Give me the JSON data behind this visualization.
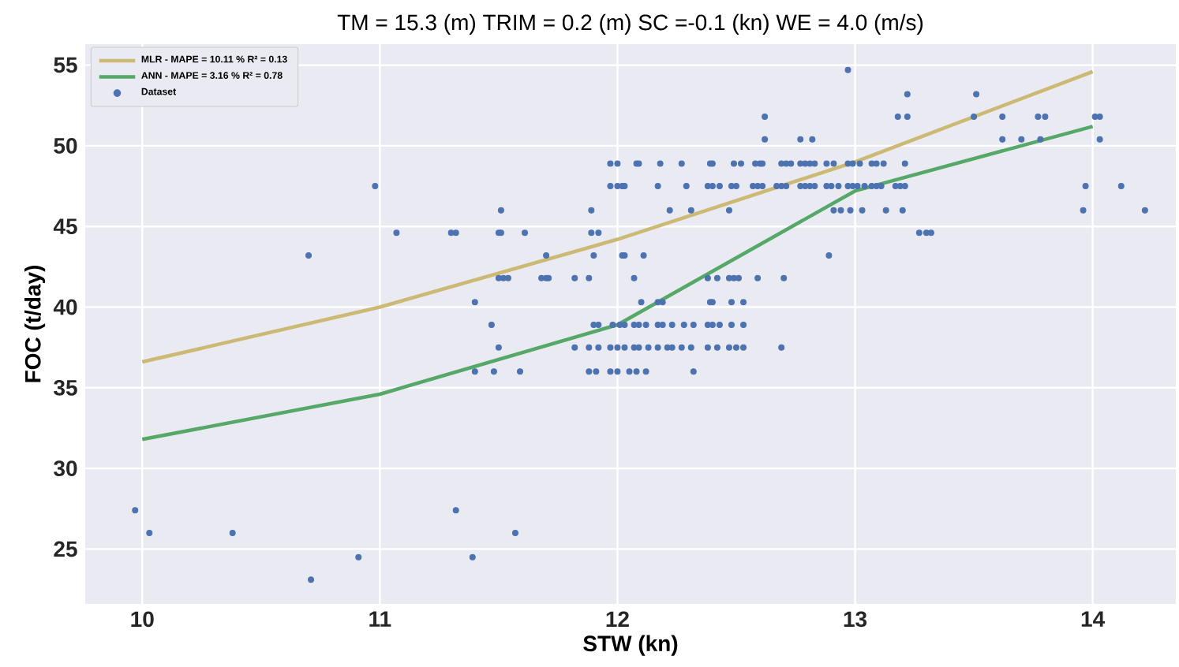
{
  "chart_data": {
    "type": "scatter",
    "title": "TM = 15.3 (m) TRIM = 0.2 (m) SC =-0.1 (kn) WE = 4.0 (m/s)",
    "xlabel": "STW (kn)",
    "ylabel": "FOC (t/day)",
    "xlim": [
      9.76,
      14.35
    ],
    "ylim": [
      21.6,
      56.3
    ],
    "xticks": [
      10,
      11,
      12,
      13,
      14
    ],
    "yticks": [
      25,
      30,
      35,
      40,
      45,
      50,
      55
    ],
    "grid": true,
    "legend": "top left",
    "series": [
      {
        "name": "MLR - MAPE = 10.11 %  R² =  0.13",
        "type": "line",
        "marker": "none",
        "line_style": "solid",
        "color": "#ccb974",
        "x": [
          10,
          11,
          12,
          13,
          14
        ],
        "values": [
          36.6,
          40.0,
          44.2,
          49.0,
          54.6
        ]
      },
      {
        "name": "ANN - MAPE =  3.16 %  R² =  0.78",
        "type": "line",
        "marker": "none",
        "line_style": "solid",
        "color": "#55a868",
        "x": [
          10,
          11,
          12,
          13,
          14
        ],
        "values": [
          31.8,
          34.6,
          38.9,
          47.2,
          51.2
        ]
      },
      {
        "name": "Dataset",
        "marker": "circle",
        "color": "#4c72b0",
        "x": [
          11.97,
          12.0,
          12.08,
          12.09,
          12.18,
          12.27,
          12.39,
          12.4,
          12.49,
          12.52,
          12.58,
          12.6,
          12.61,
          12.69,
          12.71,
          12.73,
          12.77,
          12.79,
          12.81,
          12.83,
          12.88,
          12.91,
          12.97,
          12.99,
          13.02,
          13.07,
          13.09,
          13.12,
          13.21,
          10.98,
          11.97,
          12.0,
          12.02,
          12.03,
          12.17,
          12.29,
          12.38,
          12.4,
          12.43,
          12.48,
          12.5,
          12.57,
          12.59,
          12.61,
          12.67,
          12.69,
          12.71,
          12.77,
          12.79,
          12.81,
          12.83,
          12.88,
          12.9,
          12.93,
          12.97,
          12.99,
          13.01,
          13.04,
          13.07,
          13.09,
          13.11,
          13.17,
          13.19,
          13.21,
          13.97,
          14.12,
          11.51,
          11.89,
          12.22,
          12.31,
          12.47,
          12.91,
          12.94,
          12.98,
          13.03,
          13.13,
          13.2,
          13.96,
          14.22,
          11.07,
          11.3,
          11.32,
          11.5,
          11.51,
          11.61,
          11.89,
          11.92,
          13.27,
          13.3,
          13.32,
          10.7,
          11.7,
          11.9,
          12.02,
          12.03,
          12.11,
          12.89,
          11.5,
          11.52,
          11.54,
          11.68,
          11.7,
          11.71,
          11.82,
          11.88,
          12.07,
          12.38,
          12.42,
          12.47,
          12.49,
          12.51,
          12.59,
          12.7,
          11.4,
          12.1,
          12.17,
          12.19,
          12.39,
          12.4,
          12.48,
          12.53,
          11.47,
          11.9,
          11.92,
          11.98,
          12.01,
          12.03,
          12.07,
          12.09,
          12.12,
          12.17,
          12.19,
          12.23,
          12.28,
          12.32,
          12.38,
          12.4,
          12.43,
          12.48,
          12.53,
          11.5,
          11.82,
          11.88,
          11.92,
          11.97,
          12.0,
          12.03,
          12.07,
          12.09,
          12.13,
          12.17,
          12.21,
          12.23,
          12.27,
          12.31,
          12.38,
          12.42,
          12.47,
          12.5,
          12.53,
          12.69,
          11.4,
          11.48,
          11.59,
          11.88,
          11.91,
          11.97,
          12.0,
          12.05,
          12.08,
          12.12,
          12.32,
          9.97,
          11.32,
          10.03,
          10.38,
          11.57,
          10.91,
          11.39,
          10.71,
          12.97,
          13.22,
          13.51,
          12.62,
          13.18,
          13.22,
          13.5,
          13.62,
          13.77,
          13.8,
          14.01,
          14.03,
          12.62,
          12.77,
          12.82,
          13.62,
          13.7,
          13.78,
          14.03
        ],
        "values": [
          48.9,
          48.9,
          48.9,
          48.9,
          48.9,
          48.9,
          48.9,
          48.9,
          48.9,
          48.9,
          48.9,
          48.9,
          48.9,
          48.9,
          48.9,
          48.9,
          48.9,
          48.9,
          48.9,
          48.9,
          48.9,
          48.9,
          48.9,
          48.9,
          48.9,
          48.9,
          48.9,
          48.9,
          48.9,
          47.5,
          47.5,
          47.5,
          47.5,
          47.5,
          47.5,
          47.5,
          47.5,
          47.5,
          47.5,
          47.5,
          47.5,
          47.5,
          47.5,
          47.5,
          47.5,
          47.5,
          47.5,
          47.5,
          47.5,
          47.5,
          47.5,
          47.5,
          47.5,
          47.5,
          47.5,
          47.5,
          47.5,
          47.5,
          47.5,
          47.5,
          47.5,
          47.5,
          47.5,
          47.5,
          47.5,
          47.5,
          46.0,
          46.0,
          46.0,
          46.0,
          46.0,
          46.0,
          46.0,
          46.0,
          46.0,
          46.0,
          46.0,
          46.0,
          46.0,
          44.6,
          44.6,
          44.6,
          44.6,
          44.6,
          44.6,
          44.6,
          44.6,
          44.6,
          44.6,
          44.6,
          43.2,
          43.2,
          43.2,
          43.2,
          43.2,
          43.2,
          43.2,
          41.8,
          41.8,
          41.8,
          41.8,
          41.8,
          41.8,
          41.8,
          41.8,
          41.8,
          41.8,
          41.8,
          41.8,
          41.8,
          41.8,
          41.8,
          41.8,
          40.3,
          40.3,
          40.3,
          40.3,
          40.3,
          40.3,
          40.3,
          40.3,
          38.9,
          38.9,
          38.9,
          38.9,
          38.9,
          38.9,
          38.9,
          38.9,
          38.9,
          38.9,
          38.9,
          38.9,
          38.9,
          38.9,
          38.9,
          38.9,
          38.9,
          38.9,
          38.9,
          37.5,
          37.5,
          37.5,
          37.5,
          37.5,
          37.5,
          37.5,
          37.5,
          37.5,
          37.5,
          37.5,
          37.5,
          37.5,
          37.5,
          37.5,
          37.5,
          37.5,
          37.5,
          37.5,
          37.5,
          37.5,
          36.0,
          36.0,
          36.0,
          36.0,
          36.0,
          36.0,
          36.0,
          36.0,
          36.0,
          36.0,
          36.0,
          27.4,
          27.4,
          26.0,
          26.0,
          26.0,
          24.5,
          24.5,
          23.1,
          54.7,
          53.2,
          53.2,
          51.8,
          51.8,
          51.8,
          51.8,
          51.8,
          51.8,
          51.8,
          51.8,
          51.8,
          50.4,
          50.4,
          50.4,
          50.4,
          50.4,
          50.4,
          50.4
        ]
      }
    ]
  }
}
